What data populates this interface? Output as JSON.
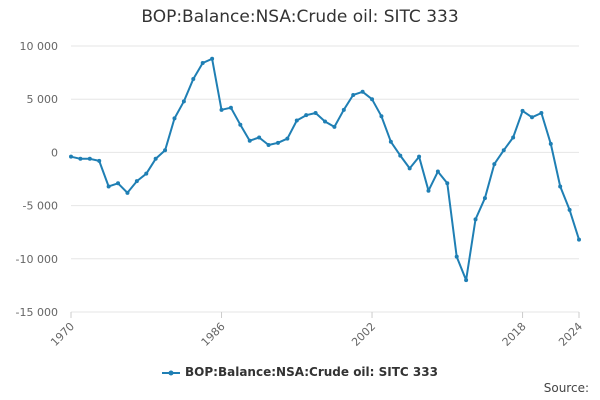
{
  "title": "BOP:Balance:NSA:Crude oil: SITC 333",
  "source_label": "Source:",
  "colors": {
    "series": "#1f7fb4",
    "grid": "#e6e6e6",
    "axis_text": "#666666"
  },
  "chart_data": {
    "type": "line",
    "title": "BOP:Balance:NSA:Crude oil: SITC 333",
    "xlabel": "",
    "ylabel": "",
    "xlim": [
      1970,
      2024
    ],
    "ylim": [
      -15000,
      10000
    ],
    "y_ticks": [
      10000,
      5000,
      0,
      -5000,
      -10000,
      -15000
    ],
    "y_tick_labels": [
      "10 000",
      "5 000",
      "0",
      "-5 000",
      "-10 000",
      "-15 000"
    ],
    "x_ticks": [
      1970,
      1986,
      2002,
      2018,
      2024
    ],
    "x_tick_labels": [
      "1970",
      "1986",
      "2002",
      "2018",
      "2024"
    ],
    "grid": true,
    "legend_position": "bottom",
    "series": [
      {
        "name": "BOP:Balance:NSA:Crude oil: SITC 333",
        "x": [
          1970,
          1971,
          1972,
          1973,
          1974,
          1975,
          1976,
          1977,
          1978,
          1979,
          1980,
          1981,
          1982,
          1983,
          1984,
          1985,
          1986,
          1987,
          1988,
          1989,
          1990,
          1991,
          1992,
          1993,
          1994,
          1995,
          1996,
          1997,
          1998,
          1999,
          2000,
          2001,
          2002,
          2003,
          2004,
          2005,
          2006,
          2007,
          2008,
          2009,
          2010,
          2011,
          2012,
          2013,
          2014,
          2015,
          2016,
          2017,
          2018,
          2019,
          2020,
          2021,
          2022,
          2023,
          2024
        ],
        "values": [
          -400,
          -600,
          -600,
          -800,
          -3200,
          -2900,
          -3800,
          -2700,
          -2000,
          -600,
          200,
          3200,
          4800,
          6900,
          8400,
          8800,
          4000,
          4200,
          2600,
          1100,
          1400,
          700,
          900,
          1300,
          3000,
          3500,
          3700,
          2900,
          2400,
          4000,
          5400,
          5700,
          5000,
          3400,
          1000,
          -300,
          -1500,
          -400,
          -3600,
          -1800,
          -2900,
          -9800,
          -12000,
          -6300,
          -4300,
          -1100,
          200,
          1400,
          3900,
          3300,
          3700,
          800,
          -3200,
          -5400,
          -8200
        ]
      }
    ]
  }
}
